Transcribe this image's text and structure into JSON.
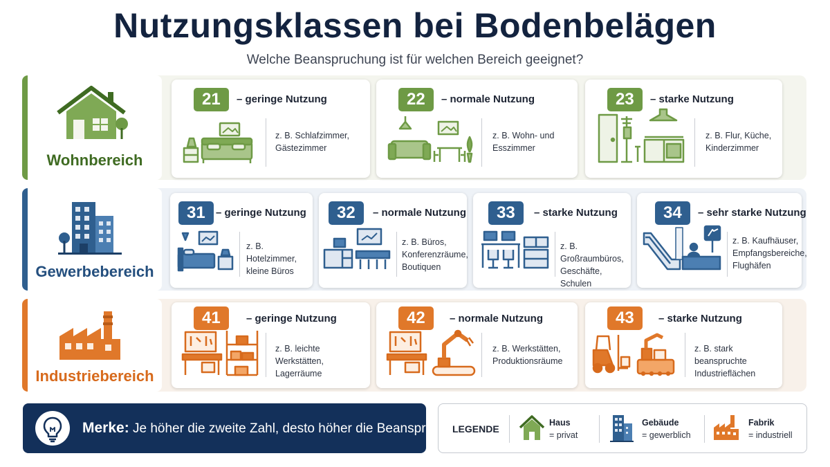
{
  "header": {
    "title": "Nutzungsklassen bei Bodenbelägen",
    "subtitle": "Welche Beanspruchung ist für welchen Bereich geeignet?"
  },
  "colors": {
    "wohn": "#6e9a45",
    "gewerbe": "#2f5f8f",
    "industrie": "#e0782a",
    "merke_bg": "#13305a"
  },
  "categories": {
    "wohn": {
      "label": "Wohnbereich",
      "icon": "house-icon"
    },
    "gewerbe": {
      "label": "Gewerbebereich",
      "icon": "building-icon"
    },
    "industrie": {
      "label": "Industriebereich",
      "icon": "factory-icon"
    }
  },
  "classes": {
    "wohn": [
      {
        "number": "21",
        "usage": "– geringe Nutzung",
        "examples": [
          "z. B. Schlafzimmer,",
          "Gästezimmer"
        ],
        "icon": "bedroom-icon"
      },
      {
        "number": "22",
        "usage": "– normale Nutzung",
        "examples": [
          "z. B. Wohn- und",
          "Esszimmer"
        ],
        "icon": "living-room-icon"
      },
      {
        "number": "23",
        "usage": "– starke Nutzung",
        "examples": [
          "z. B. Flur, Küche,",
          "Kinderzimmer"
        ],
        "icon": "hallway-kitchen-icon"
      }
    ],
    "gewerbe": [
      {
        "number": "31",
        "usage": "– geringe Nutzung",
        "examples": [
          "z. B. Hotelzimmer,",
          "kleine Büros"
        ],
        "icon": "hotel-room-icon"
      },
      {
        "number": "32",
        "usage": "– normale Nutzung",
        "examples": [
          "z. B. Büros,",
          "Konferenzräume,",
          "Boutiquen"
        ],
        "icon": "office-icon"
      },
      {
        "number": "33",
        "usage": "– starke Nutzung",
        "examples": [
          "z. B. Großraumbüros,",
          "Geschäfte, Schulen"
        ],
        "icon": "open-office-icon"
      },
      {
        "number": "34",
        "usage": "– sehr starke Nutzung",
        "examples": [
          "z. B. Kaufhäuser,",
          "Empfangsbereiche,",
          "Flughäfen"
        ],
        "icon": "escalator-airport-icon"
      }
    ],
    "industrie": [
      {
        "number": "41",
        "usage": "– geringe Nutzung",
        "examples": [
          "z. B. leichte Werkstätten,",
          "Lagerräume"
        ],
        "icon": "workbench-shelf-icon"
      },
      {
        "number": "42",
        "usage": "– normale Nutzung",
        "examples": [
          "z. B. Werkstätten,",
          "Produktionsräume"
        ],
        "icon": "workbench-robot-icon"
      },
      {
        "number": "43",
        "usage": "– starke Nutzung",
        "examples": [
          "z. B. stark beanspruchte",
          "Industrieflächen"
        ],
        "icon": "forklift-machine-icon"
      }
    ]
  },
  "merke": {
    "label": "Merke:",
    "text": "Je höher die zweite Zahl, desto höher die Beanspruchung.",
    "icon": "lightbulb-icon"
  },
  "legend": {
    "title": "LEGENDE",
    "items": [
      {
        "name": "Haus",
        "value": "= privat",
        "icon": "house-icon"
      },
      {
        "name": "Gebäude",
        "value": "= gewerblich",
        "icon": "building-icon"
      },
      {
        "name": "Fabrik",
        "value": "= industriell",
        "icon": "factory-icon"
      }
    ]
  }
}
